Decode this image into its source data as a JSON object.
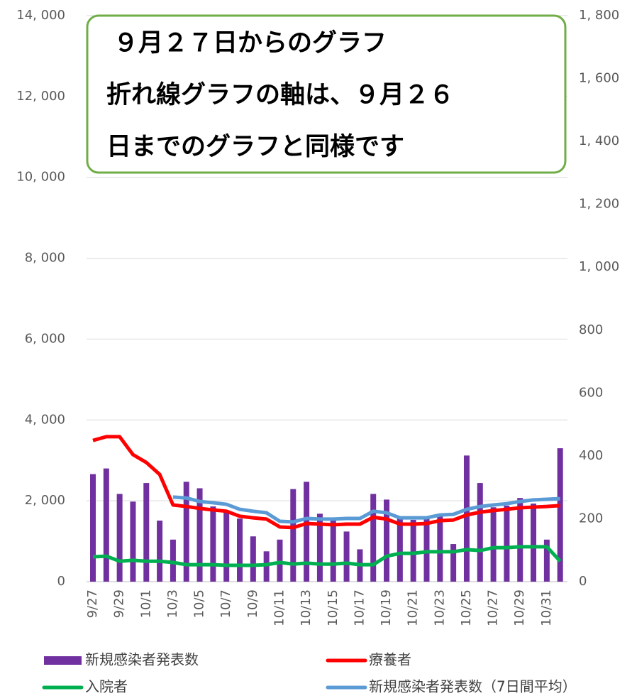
{
  "chart_data": {
    "type": "bar_line",
    "annotations": [
      "９月２７日からのグラフ",
      "折れ線グラフの軸は、９月２６",
      "日までのグラフと同様です"
    ],
    "categories": [
      "9/27",
      null,
      "9/29",
      null,
      "10/1",
      null,
      "10/3",
      null,
      "10/5",
      null,
      "10/7",
      null,
      "10/9",
      null,
      "10/11",
      null,
      "10/13",
      null,
      "10/15",
      null,
      "10/17",
      null,
      "10/19",
      null,
      "10/21",
      null,
      "10/23",
      null,
      "10/25",
      null,
      "10/27",
      null,
      "10/29",
      null,
      "10/31",
      null
    ],
    "series": [
      {
        "name": "新規感染者発表数",
        "color": "#7030a0",
        "kind": "bar",
        "values": [
          2660,
          2800,
          2170,
          1980,
          2440,
          1510,
          1040,
          2470,
          2310,
          1860,
          1770,
          1560,
          1120,
          750,
          1040,
          2290,
          2470,
          1680,
          1560,
          1240,
          800,
          2170,
          2030,
          1560,
          1530,
          1560,
          1650,
          930,
          3120,
          2440,
          1840,
          1880,
          2070,
          1930,
          1040,
          3300
        ]
      },
      {
        "name": "療養者",
        "color": "#ff0000",
        "kind": "line",
        "axis": "y2",
        "values": [
          449,
          461,
          461,
          404,
          379,
          341,
          244,
          239,
          233,
          228,
          224,
          208,
          203,
          199,
          174,
          172,
          185,
          183,
          181,
          183,
          183,
          205,
          199,
          183,
          183,
          185,
          194,
          196,
          212,
          221,
          226,
          230,
          235,
          237,
          239,
          242
        ]
      },
      {
        "name": "入院者",
        "color": "#00b050",
        "kind": "line",
        "axis": "y2",
        "values": [
          79,
          81,
          65,
          68,
          65,
          65,
          61,
          54,
          54,
          54,
          52,
          52,
          52,
          54,
          61,
          56,
          59,
          56,
          56,
          59,
          54,
          54,
          81,
          90,
          90,
          95,
          95,
          95,
          102,
          99,
          108,
          108,
          111,
          111,
          111,
          65
        ]
      },
      {
        "name": "新規感染者発表数（7日間平均）",
        "color": "#5b9bd5",
        "kind": "line",
        "axis": "y2",
        "values": [
          null,
          null,
          null,
          null,
          null,
          null,
          269,
          266,
          255,
          251,
          246,
          230,
          224,
          219,
          192,
          190,
          201,
          199,
          199,
          201,
          201,
          224,
          219,
          203,
          203,
          203,
          212,
          214,
          230,
          239,
          244,
          248,
          255,
          260,
          262,
          264
        ]
      }
    ],
    "ylim": [
      0,
      14000
    ],
    "yticks": [
      0,
      {
        "value": 2000,
        "label": "2, 000"
      },
      {
        "value": 4000,
        "label": "4, 000"
      },
      {
        "value": 6000,
        "label": "6, 000"
      },
      {
        "value": 8000,
        "label": "8, 000"
      },
      {
        "value": 10000,
        "label": "10, 000"
      },
      {
        "value": 12000,
        "label": "12, 000"
      },
      {
        "value": 14000,
        "label": "14, 000"
      }
    ],
    "y2lim": [
      0,
      1800
    ],
    "y2ticks": [
      0,
      200,
      400,
      600,
      800,
      {
        "value": 1000,
        "label": "1, 000"
      },
      {
        "value": 1200,
        "label": "1, 200"
      },
      {
        "value": 1400,
        "label": "1, 400"
      },
      {
        "value": 1600,
        "label": "1, 600"
      },
      {
        "value": 1800,
        "label": "1, 800"
      }
    ],
    "grid": true
  }
}
